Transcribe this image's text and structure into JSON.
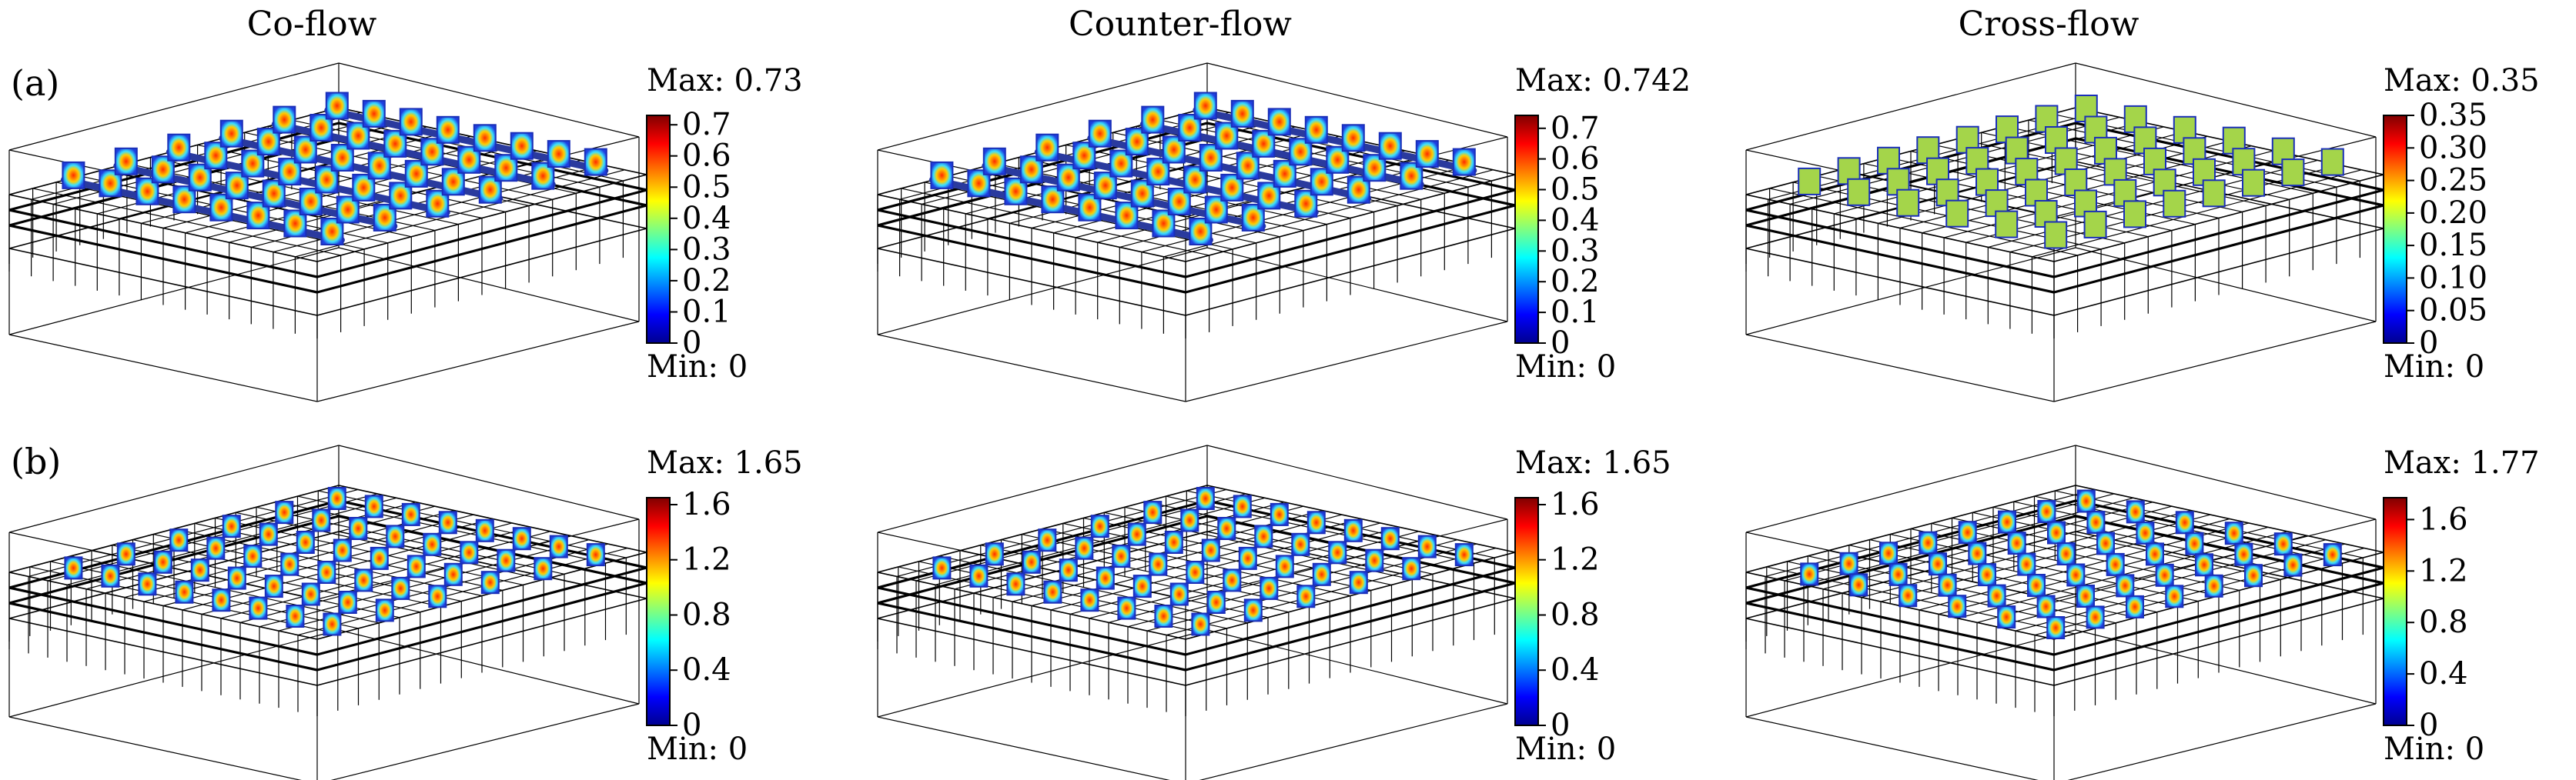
{
  "columns": [
    {
      "title": "Co-flow"
    },
    {
      "title": "Counter-flow"
    },
    {
      "title": "Cross-flow"
    }
  ],
  "rows": [
    {
      "label": "(a)"
    },
    {
      "label": "(b)"
    }
  ],
  "panels": [
    {
      "row": 0,
      "col": 0,
      "max_label": "Max: 0.73",
      "min_label": "Min: 0",
      "ticks": [
        "0",
        "0.1",
        "0.2",
        "0.3",
        "0.4",
        "0.5",
        "0.6",
        "0.7"
      ],
      "tick_values": [
        0,
        0.1,
        0.2,
        0.3,
        0.4,
        0.5,
        0.6,
        0.7
      ],
      "range": [
        0,
        0.73
      ],
      "cells": "co-flow-cells",
      "cell_value": "high",
      "mesh": "coarse"
    },
    {
      "row": 0,
      "col": 1,
      "max_label": "Max: 0.742",
      "min_label": "Min: 0",
      "ticks": [
        "0",
        "0.1",
        "0.2",
        "0.3",
        "0.4",
        "0.5",
        "0.6",
        "0.7"
      ],
      "tick_values": [
        0,
        0.1,
        0.2,
        0.3,
        0.4,
        0.5,
        0.6,
        0.7
      ],
      "range": [
        0,
        0.742
      ],
      "cells": "counter-flow-cells",
      "cell_value": "high",
      "mesh": "coarse"
    },
    {
      "row": 0,
      "col": 2,
      "max_label": "Max: 0.35",
      "min_label": "Min: 0",
      "ticks": [
        "0",
        "0.05",
        "0.10",
        "0.15",
        "0.20",
        "0.25",
        "0.30",
        "0.35"
      ],
      "tick_values": [
        0,
        0.05,
        0.1,
        0.15,
        0.2,
        0.25,
        0.3,
        0.35
      ],
      "range": [
        0,
        0.35
      ],
      "cells": "cross-flow-cells",
      "cell_value": "uniform",
      "mesh": "coarse"
    },
    {
      "row": 1,
      "col": 0,
      "max_label": "Max: 1.65",
      "min_label": "Min: 0",
      "ticks": [
        "0",
        "0.4",
        "0.8",
        "1.2",
        "1.6"
      ],
      "tick_values": [
        0,
        0.4,
        0.8,
        1.2,
        1.6
      ],
      "range": [
        0,
        1.65
      ],
      "cells": "co-flow-cells",
      "cell_value": "high",
      "mesh": "fine"
    },
    {
      "row": 1,
      "col": 1,
      "max_label": "Max: 1.65",
      "min_label": "Min: 0",
      "ticks": [
        "0",
        "0.4",
        "0.8",
        "1.2",
        "1.6"
      ],
      "tick_values": [
        0,
        0.4,
        0.8,
        1.2,
        1.6
      ],
      "range": [
        0,
        1.65
      ],
      "cells": "counter-flow-cells",
      "cell_value": "high",
      "mesh": "fine"
    },
    {
      "row": 1,
      "col": 2,
      "max_label": "Max: 1.77",
      "min_label": "Min: 0",
      "ticks": [
        "0",
        "0.4",
        "0.8",
        "1.2",
        "1.6"
      ],
      "tick_values": [
        0,
        0.4,
        0.8,
        1.2,
        1.6
      ],
      "range": [
        0,
        1.77
      ],
      "cells": "cross-flow-cells",
      "cell_value": "high",
      "mesh": "fine"
    }
  ],
  "colormap": "jet",
  "colors": {
    "channel": "#2a3a9e",
    "mesh": "#000000",
    "uniform_cell": "#a4d54a"
  }
}
